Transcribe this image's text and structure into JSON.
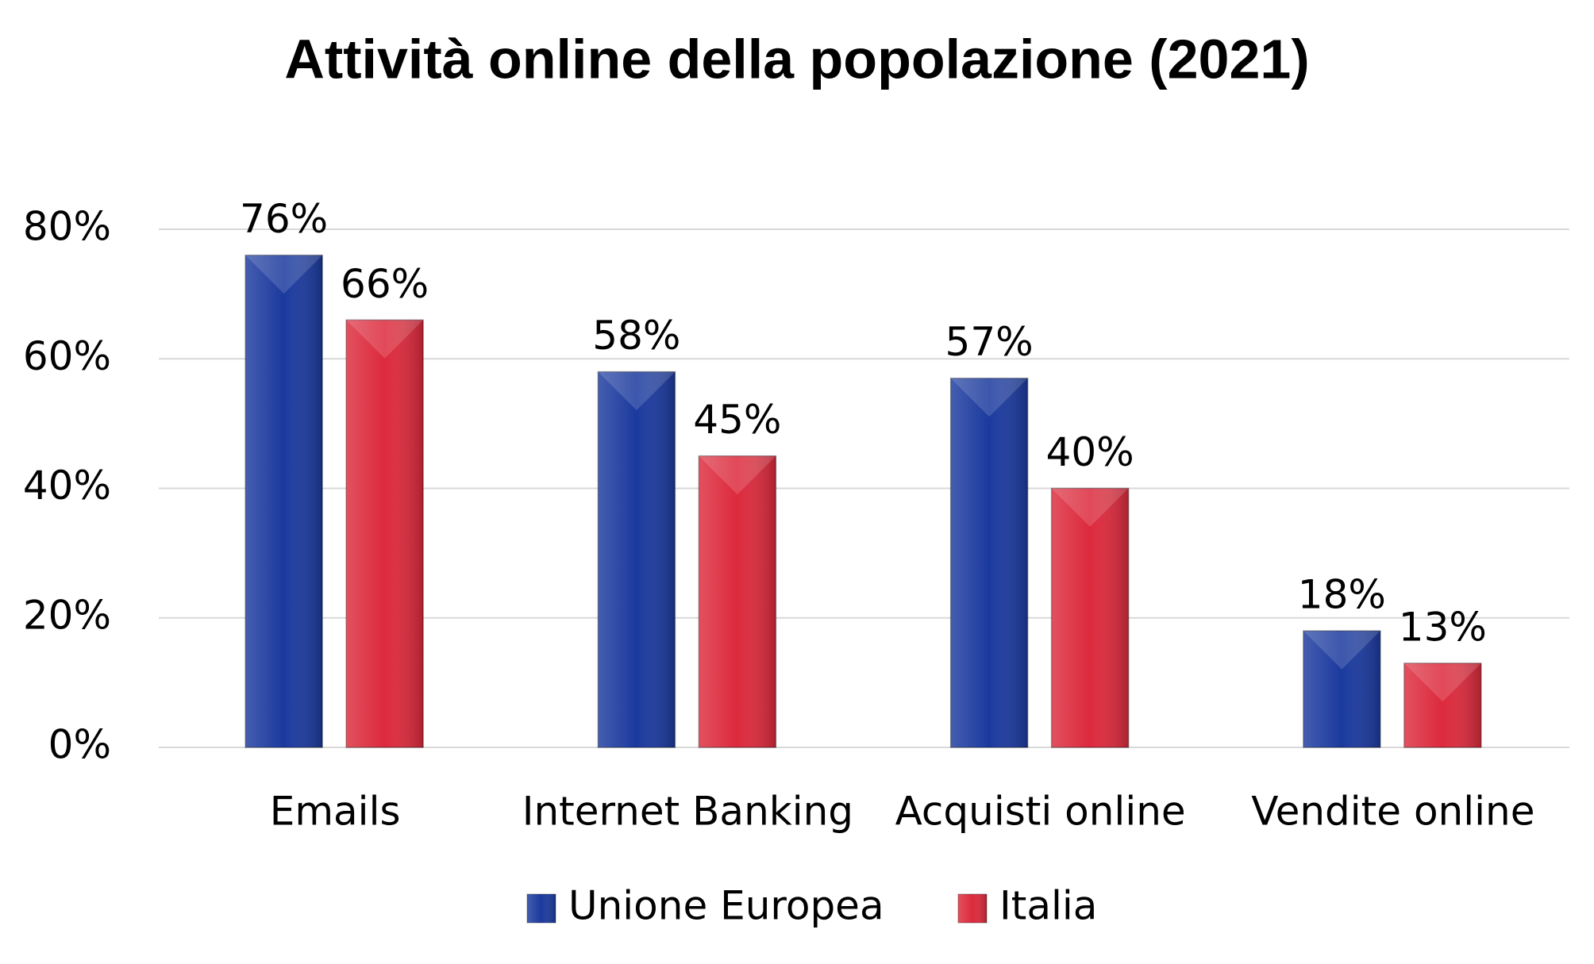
{
  "chart_data": {
    "type": "bar",
    "title": "Attività online della popolazione (2021)",
    "categories": [
      "Emails",
      "Internet Banking",
      "Acquisti online",
      "Vendite online"
    ],
    "series": [
      {
        "name": "Unione Europea",
        "color": "#1b3a9e",
        "values": [
          76,
          58,
          57,
          18
        ],
        "value_labels": [
          "76%",
          "58%",
          "57%",
          "18%"
        ]
      },
      {
        "name": "Italia",
        "color": "#dc2a3c",
        "values": [
          66,
          45,
          40,
          13
        ],
        "value_labels": [
          "66%",
          "45%",
          "40%",
          "13%"
        ]
      }
    ],
    "ylim": [
      0,
      80
    ],
    "yticks": [
      {
        "value": 0,
        "label": "0%"
      },
      {
        "value": 20,
        "label": "20%"
      },
      {
        "value": 40,
        "label": "40%"
      },
      {
        "value": 60,
        "label": "60%"
      },
      {
        "value": 80,
        "label": "80%"
      }
    ],
    "grid": true,
    "legend": "bottom"
  }
}
